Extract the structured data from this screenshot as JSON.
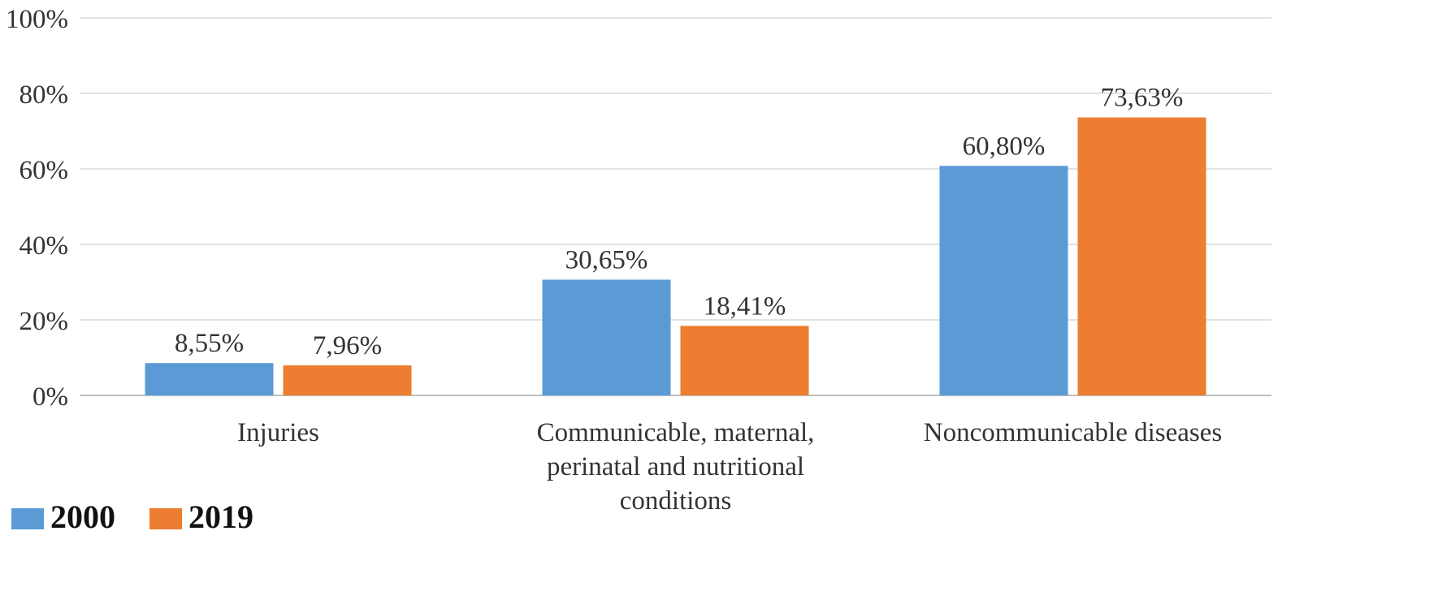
{
  "chart_data": {
    "type": "bar",
    "categories": [
      [
        "Injuries"
      ],
      [
        "Communicable, maternal,",
        "perinatal and nutritional",
        "conditions"
      ],
      [
        "Noncommunicable diseases"
      ]
    ],
    "series": [
      {
        "name": "2000",
        "color": "#5B9BD5",
        "values": [
          8.55,
          30.65,
          60.8
        ],
        "labels": [
          "8,55%",
          "30,65%",
          "60,80%"
        ]
      },
      {
        "name": "2019",
        "color": "#ED7D31",
        "values": [
          7.96,
          18.41,
          73.63
        ],
        "labels": [
          "7,96%",
          "18,41%",
          "73,63%"
        ]
      }
    ],
    "ylim": [
      0,
      100
    ],
    "yticks": [
      {
        "value": 0,
        "label": "0%"
      },
      {
        "value": 20,
        "label": "20%"
      },
      {
        "value": 40,
        "label": "40%"
      },
      {
        "value": 60,
        "label": "60%"
      },
      {
        "value": 80,
        "label": "80%"
      },
      {
        "value": 100,
        "label": "100%"
      }
    ],
    "grid": true,
    "legend_position": "bottom-left"
  }
}
